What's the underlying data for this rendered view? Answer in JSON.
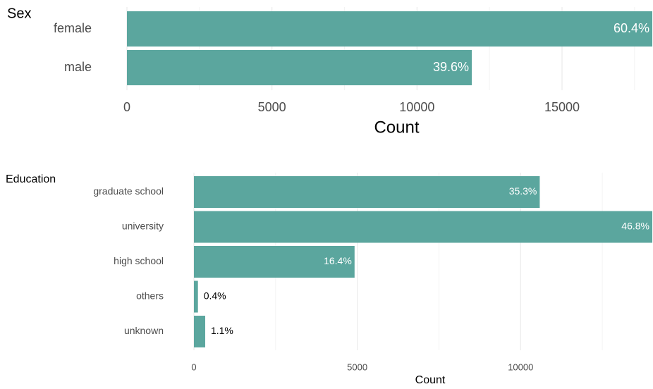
{
  "chart_data": [
    {
      "type": "barh",
      "title": "Sex",
      "xlabel": "Count",
      "categories": [
        "female",
        "male"
      ],
      "values": [
        18112,
        11888
      ],
      "bar_labels": [
        "60.4%",
        "39.6%"
      ],
      "color": "#5ba69e",
      "xlim": [
        0,
        18112
      ],
      "xticks": [
        0,
        5000,
        10000,
        15000
      ],
      "x_minor_ticks": [
        2500,
        7500,
        12500,
        17500
      ],
      "grid": true
    },
    {
      "type": "barh",
      "title": "Education",
      "xlabel": "Count",
      "categories": [
        "graduate school",
        "university",
        "high school",
        "others",
        "unknown"
      ],
      "values": [
        10585,
        14030,
        4917,
        123,
        345
      ],
      "bar_labels": [
        "35.3%",
        "46.8%",
        "16.4%",
        "0.4%",
        "1.1%"
      ],
      "color": "#5ba69e",
      "xlim": [
        0,
        14030
      ],
      "xticks": [
        0,
        5000,
        10000
      ],
      "x_minor_ticks": [
        2500,
        7500,
        12500
      ],
      "grid": true
    }
  ]
}
